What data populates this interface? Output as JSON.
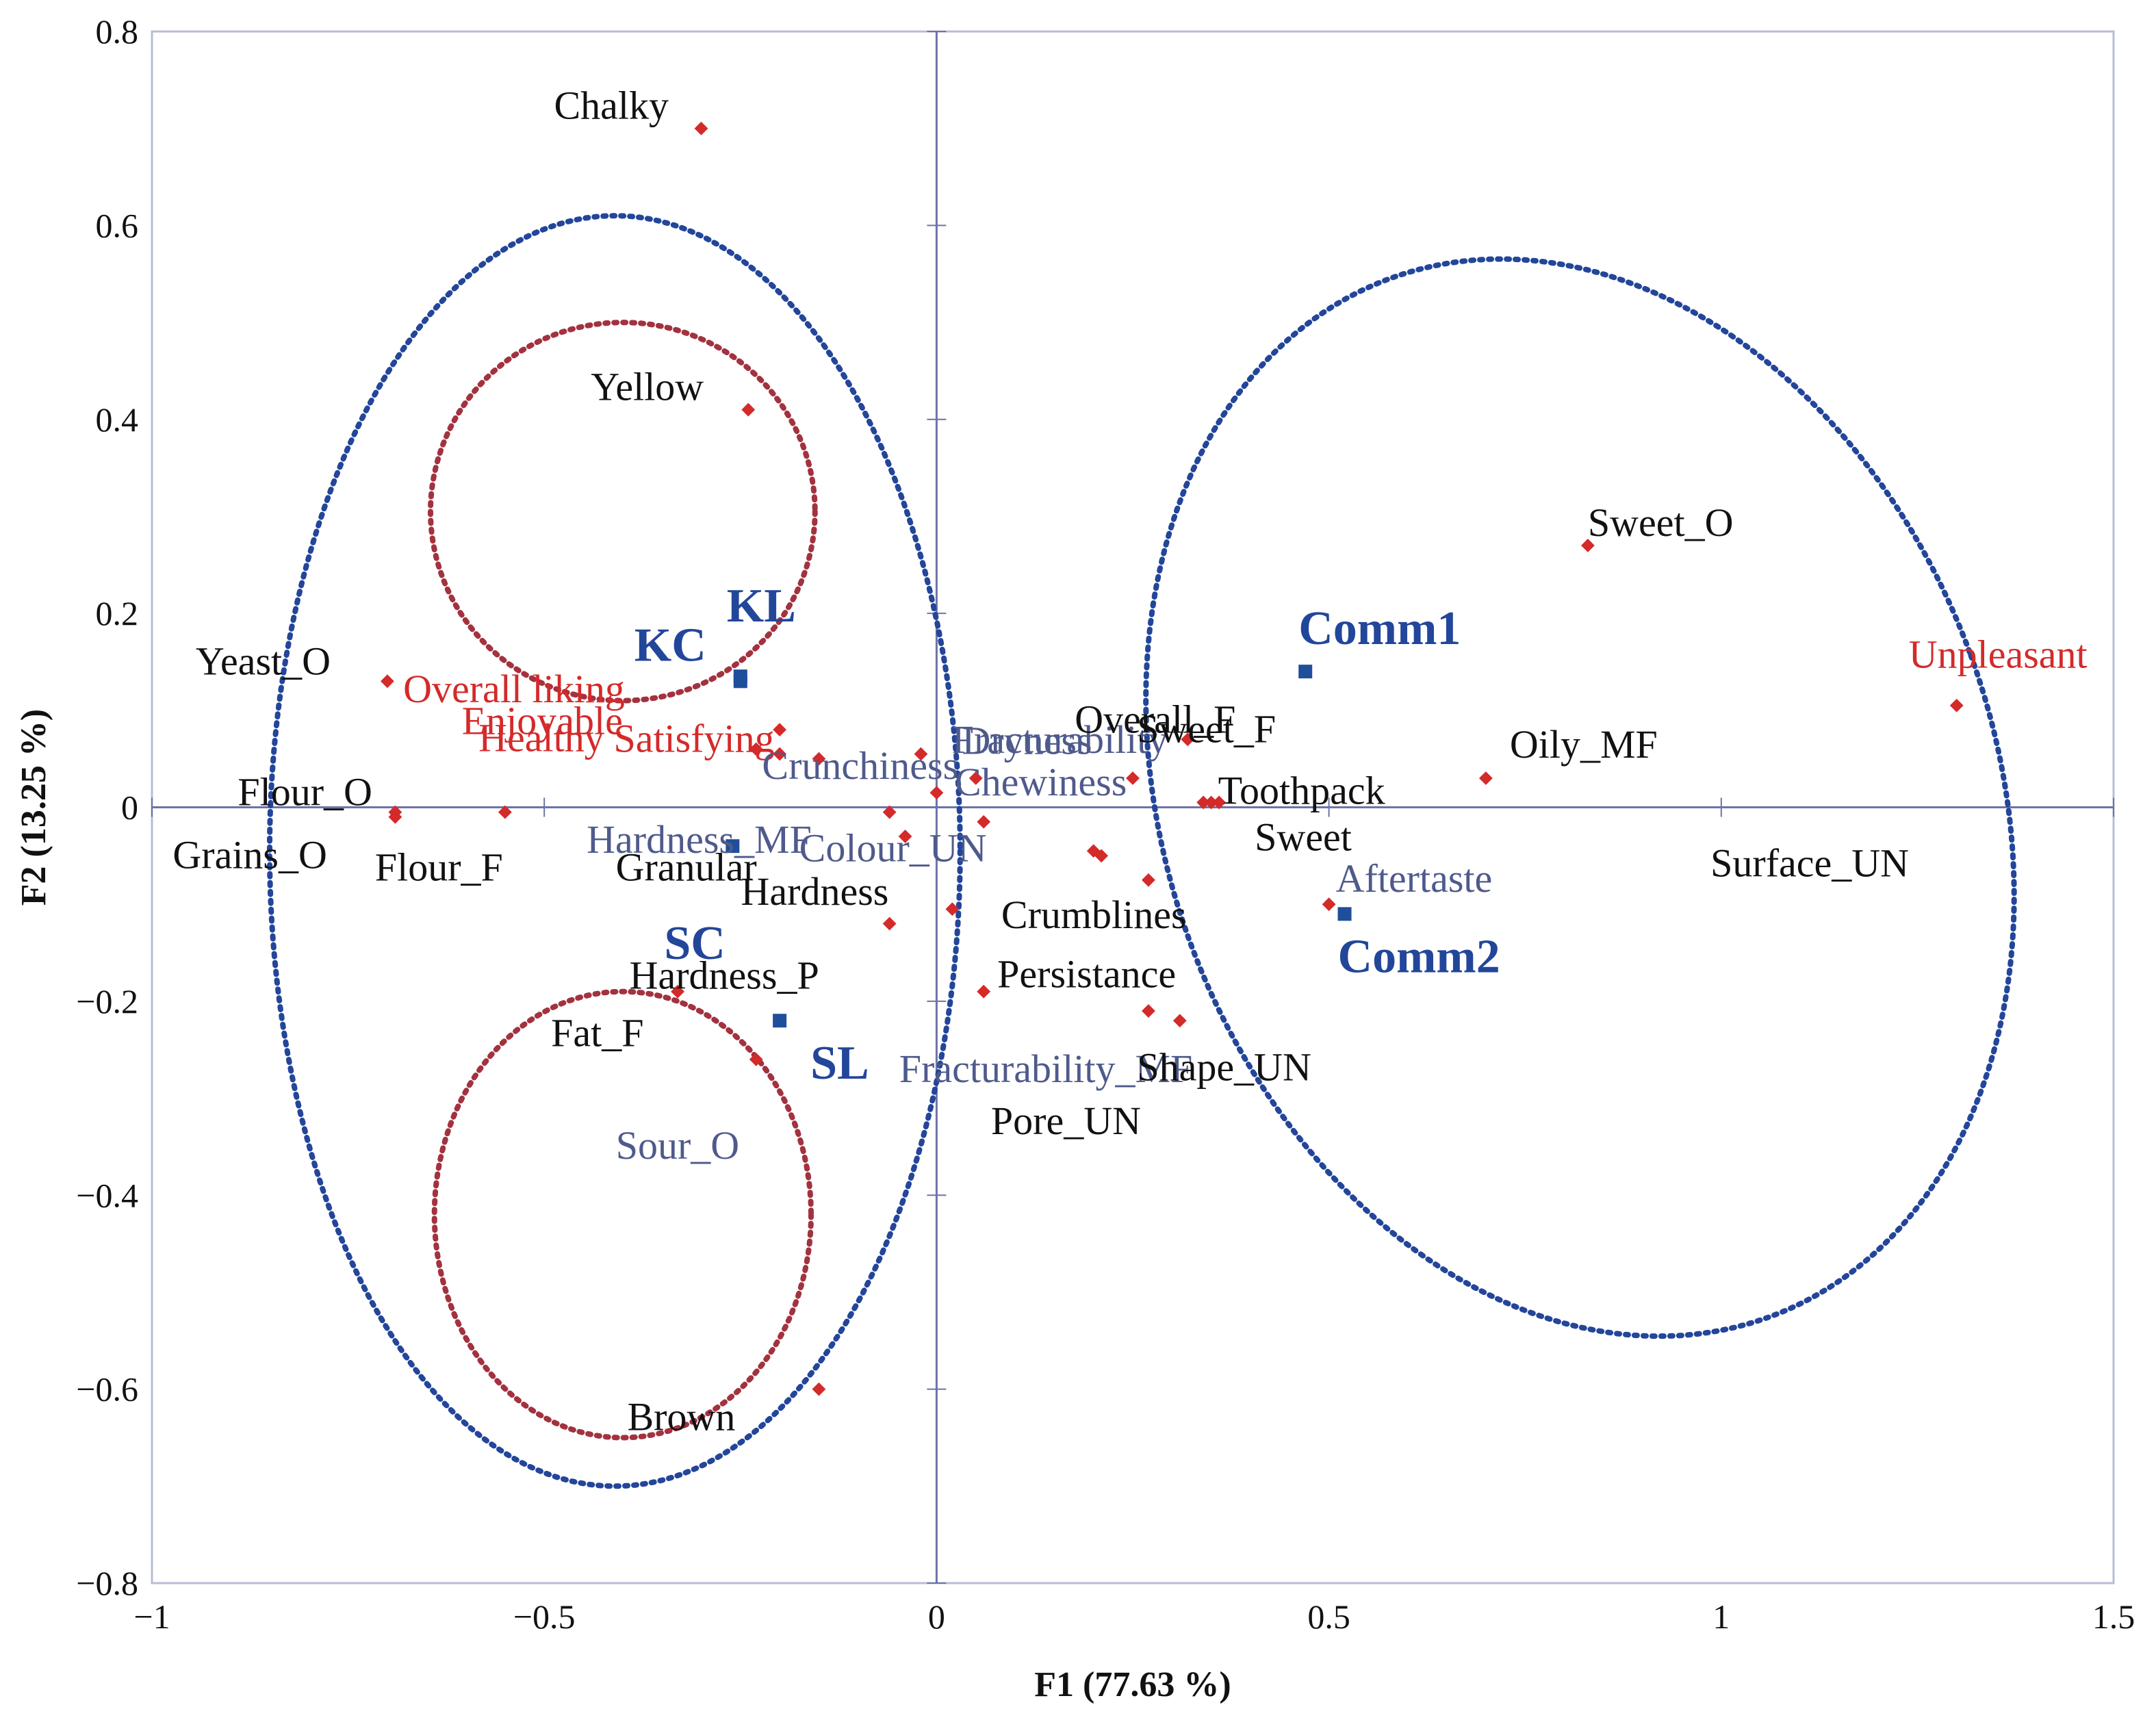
{
  "chart_data": {
    "type": "scatter",
    "title": "",
    "xlabel": "F1 (77.63 %)",
    "ylabel": "F2 (13.25 %)",
    "xlim": [
      -1,
      1.5
    ],
    "ylim": [
      -0.8,
      0.8
    ],
    "xticks": [
      -1,
      -0.5,
      0,
      0.5,
      1,
      1.5
    ],
    "yticks": [
      -0.8,
      -0.6,
      -0.4,
      -0.2,
      0,
      0.2,
      0.4,
      0.6,
      0.8
    ],
    "xtick_labels": [
      "−1",
      "−0.5",
      "0",
      "0.5",
      "1",
      "1.5"
    ],
    "ytick_labels": [
      "−0.8",
      "−0.6",
      "−0.4",
      "−0.2",
      "0",
      "0.2",
      "0.4",
      "0.6",
      "0.8"
    ],
    "grid": false,
    "colors": {
      "attribute_point": "#d42a2a",
      "product_point": "#1f4e9a",
      "ellipse_blue": "#23459a",
      "ellipse_red": "#a3323f",
      "axis_line": "#6b74a8"
    },
    "attributes": [
      {
        "label": "Chalky",
        "x": -0.3,
        "y": 0.7,
        "style": "black"
      },
      {
        "label": "Yellow",
        "x": -0.24,
        "y": 0.41,
        "style": "black"
      },
      {
        "label": "Overall liking",
        "x": -0.2,
        "y": 0.08,
        "style": "red"
      },
      {
        "label": "Yeast_O",
        "x": -0.7,
        "y": 0.13,
        "style": "black"
      },
      {
        "label": "Enjoyable",
        "x": -0.23,
        "y": 0.06,
        "style": "red"
      },
      {
        "label": "Healthy",
        "x": -0.2,
        "y": 0.055,
        "style": "red"
      },
      {
        "label": "Satisfying",
        "x": -0.15,
        "y": 0.05,
        "style": "red"
      },
      {
        "label": "Flour_O",
        "x": -0.69,
        "y": -0.005,
        "style": "black"
      },
      {
        "label": "Grains_O",
        "x": -0.69,
        "y": -0.01,
        "style": "black"
      },
      {
        "label": "Flour_F",
        "x": -0.55,
        "y": -0.005,
        "style": "black"
      },
      {
        "label": "Granular",
        "x": -0.06,
        "y": -0.005,
        "style": "black"
      },
      {
        "label": "Hardness",
        "x": -0.04,
        "y": -0.03,
        "style": "black"
      },
      {
        "label": "Hardness_P",
        "x": -0.06,
        "y": -0.12,
        "style": "black"
      },
      {
        "label": "Fat_F",
        "x": -0.33,
        "y": -0.19,
        "style": "black"
      },
      {
        "label": "Sour_O",
        "x": -0.23,
        "y": -0.26,
        "style": "grey"
      },
      {
        "label": "Brown",
        "x": -0.15,
        "y": -0.6,
        "style": "black"
      },
      {
        "label": "Dryness",
        "x": -0.02,
        "y": 0.055,
        "style": "grey"
      },
      {
        "label": "Crunchiness",
        "x": 0.0,
        "y": 0.015,
        "style": "grey"
      },
      {
        "label": "Fracturability",
        "x": 0.05,
        "y": 0.03,
        "style": "grey"
      },
      {
        "label": "Chewiness",
        "x": 0.25,
        "y": 0.03,
        "style": "grey"
      },
      {
        "label": "Hardness_MF",
        "x": 0.06,
        "y": -0.015,
        "style": "grey"
      },
      {
        "label": "Colour_UN",
        "x": 0.2,
        "y": -0.045,
        "style": "grey"
      },
      {
        "label": "Crumblines",
        "x": 0.27,
        "y": -0.075,
        "style": "black"
      },
      {
        "label": "Persistance",
        "x": 0.06,
        "y": -0.19,
        "style": "black"
      },
      {
        "label": "Fracturability_MF",
        "x": 0.31,
        "y": -0.22,
        "style": "grey"
      },
      {
        "label": "Pore_UN",
        "x": 0.27,
        "y": -0.21,
        "style": "black"
      },
      {
        "label": "Shape_UN",
        "x": 0.02,
        "y": -0.105,
        "style": "black"
      },
      {
        "label": "Surface_UN",
        "x": 0.21,
        "y": -0.05,
        "style": "black"
      },
      {
        "label": "Overall_F",
        "x": 0.32,
        "y": 0.07,
        "style": "black"
      },
      {
        "label": "Sweet_F",
        "x": 0.36,
        "y": 0.005,
        "style": "black"
      },
      {
        "label": "Toothpack",
        "x": 0.35,
        "y": 0.005,
        "style": "black"
      },
      {
        "label": "Sweet",
        "x": 0.34,
        "y": 0.005,
        "style": "black"
      },
      {
        "label": "Aftertaste",
        "x": 0.5,
        "y": -0.1,
        "style": "grey"
      },
      {
        "label": "Sweet_O",
        "x": 0.83,
        "y": 0.27,
        "style": "black"
      },
      {
        "label": "Oily_MF",
        "x": 0.7,
        "y": 0.03,
        "style": "black"
      },
      {
        "label": "Unpleasant",
        "x": 1.3,
        "y": 0.105,
        "style": "red"
      }
    ],
    "products": [
      {
        "label": "KL",
        "x": -0.25,
        "y": 0.135
      },
      {
        "label": "KC",
        "x": -0.25,
        "y": 0.13
      },
      {
        "label": "SC",
        "x": -0.26,
        "y": -0.04
      },
      {
        "label": "SL",
        "x": -0.2,
        "y": -0.22
      },
      {
        "label": "Comm1",
        "x": 0.47,
        "y": 0.14
      },
      {
        "label": "Comm2",
        "x": 0.52,
        "y": -0.11
      }
    ],
    "ellipses": [
      {
        "color": "blue",
        "cx": -0.41,
        "cy": -0.045,
        "rx": 0.44,
        "ry": 0.655
      },
      {
        "color": "red",
        "cx": -0.4,
        "cy": 0.305,
        "rx": 0.245,
        "ry": 0.195
      },
      {
        "color": "red",
        "cx": -0.4,
        "cy": -0.42,
        "rx": 0.24,
        "ry": 0.23
      },
      {
        "color": "blue",
        "cx": 0.82,
        "cy": 0.01,
        "rx": 0.53,
        "ry": 0.57,
        "rotate_deg": -20
      }
    ]
  }
}
